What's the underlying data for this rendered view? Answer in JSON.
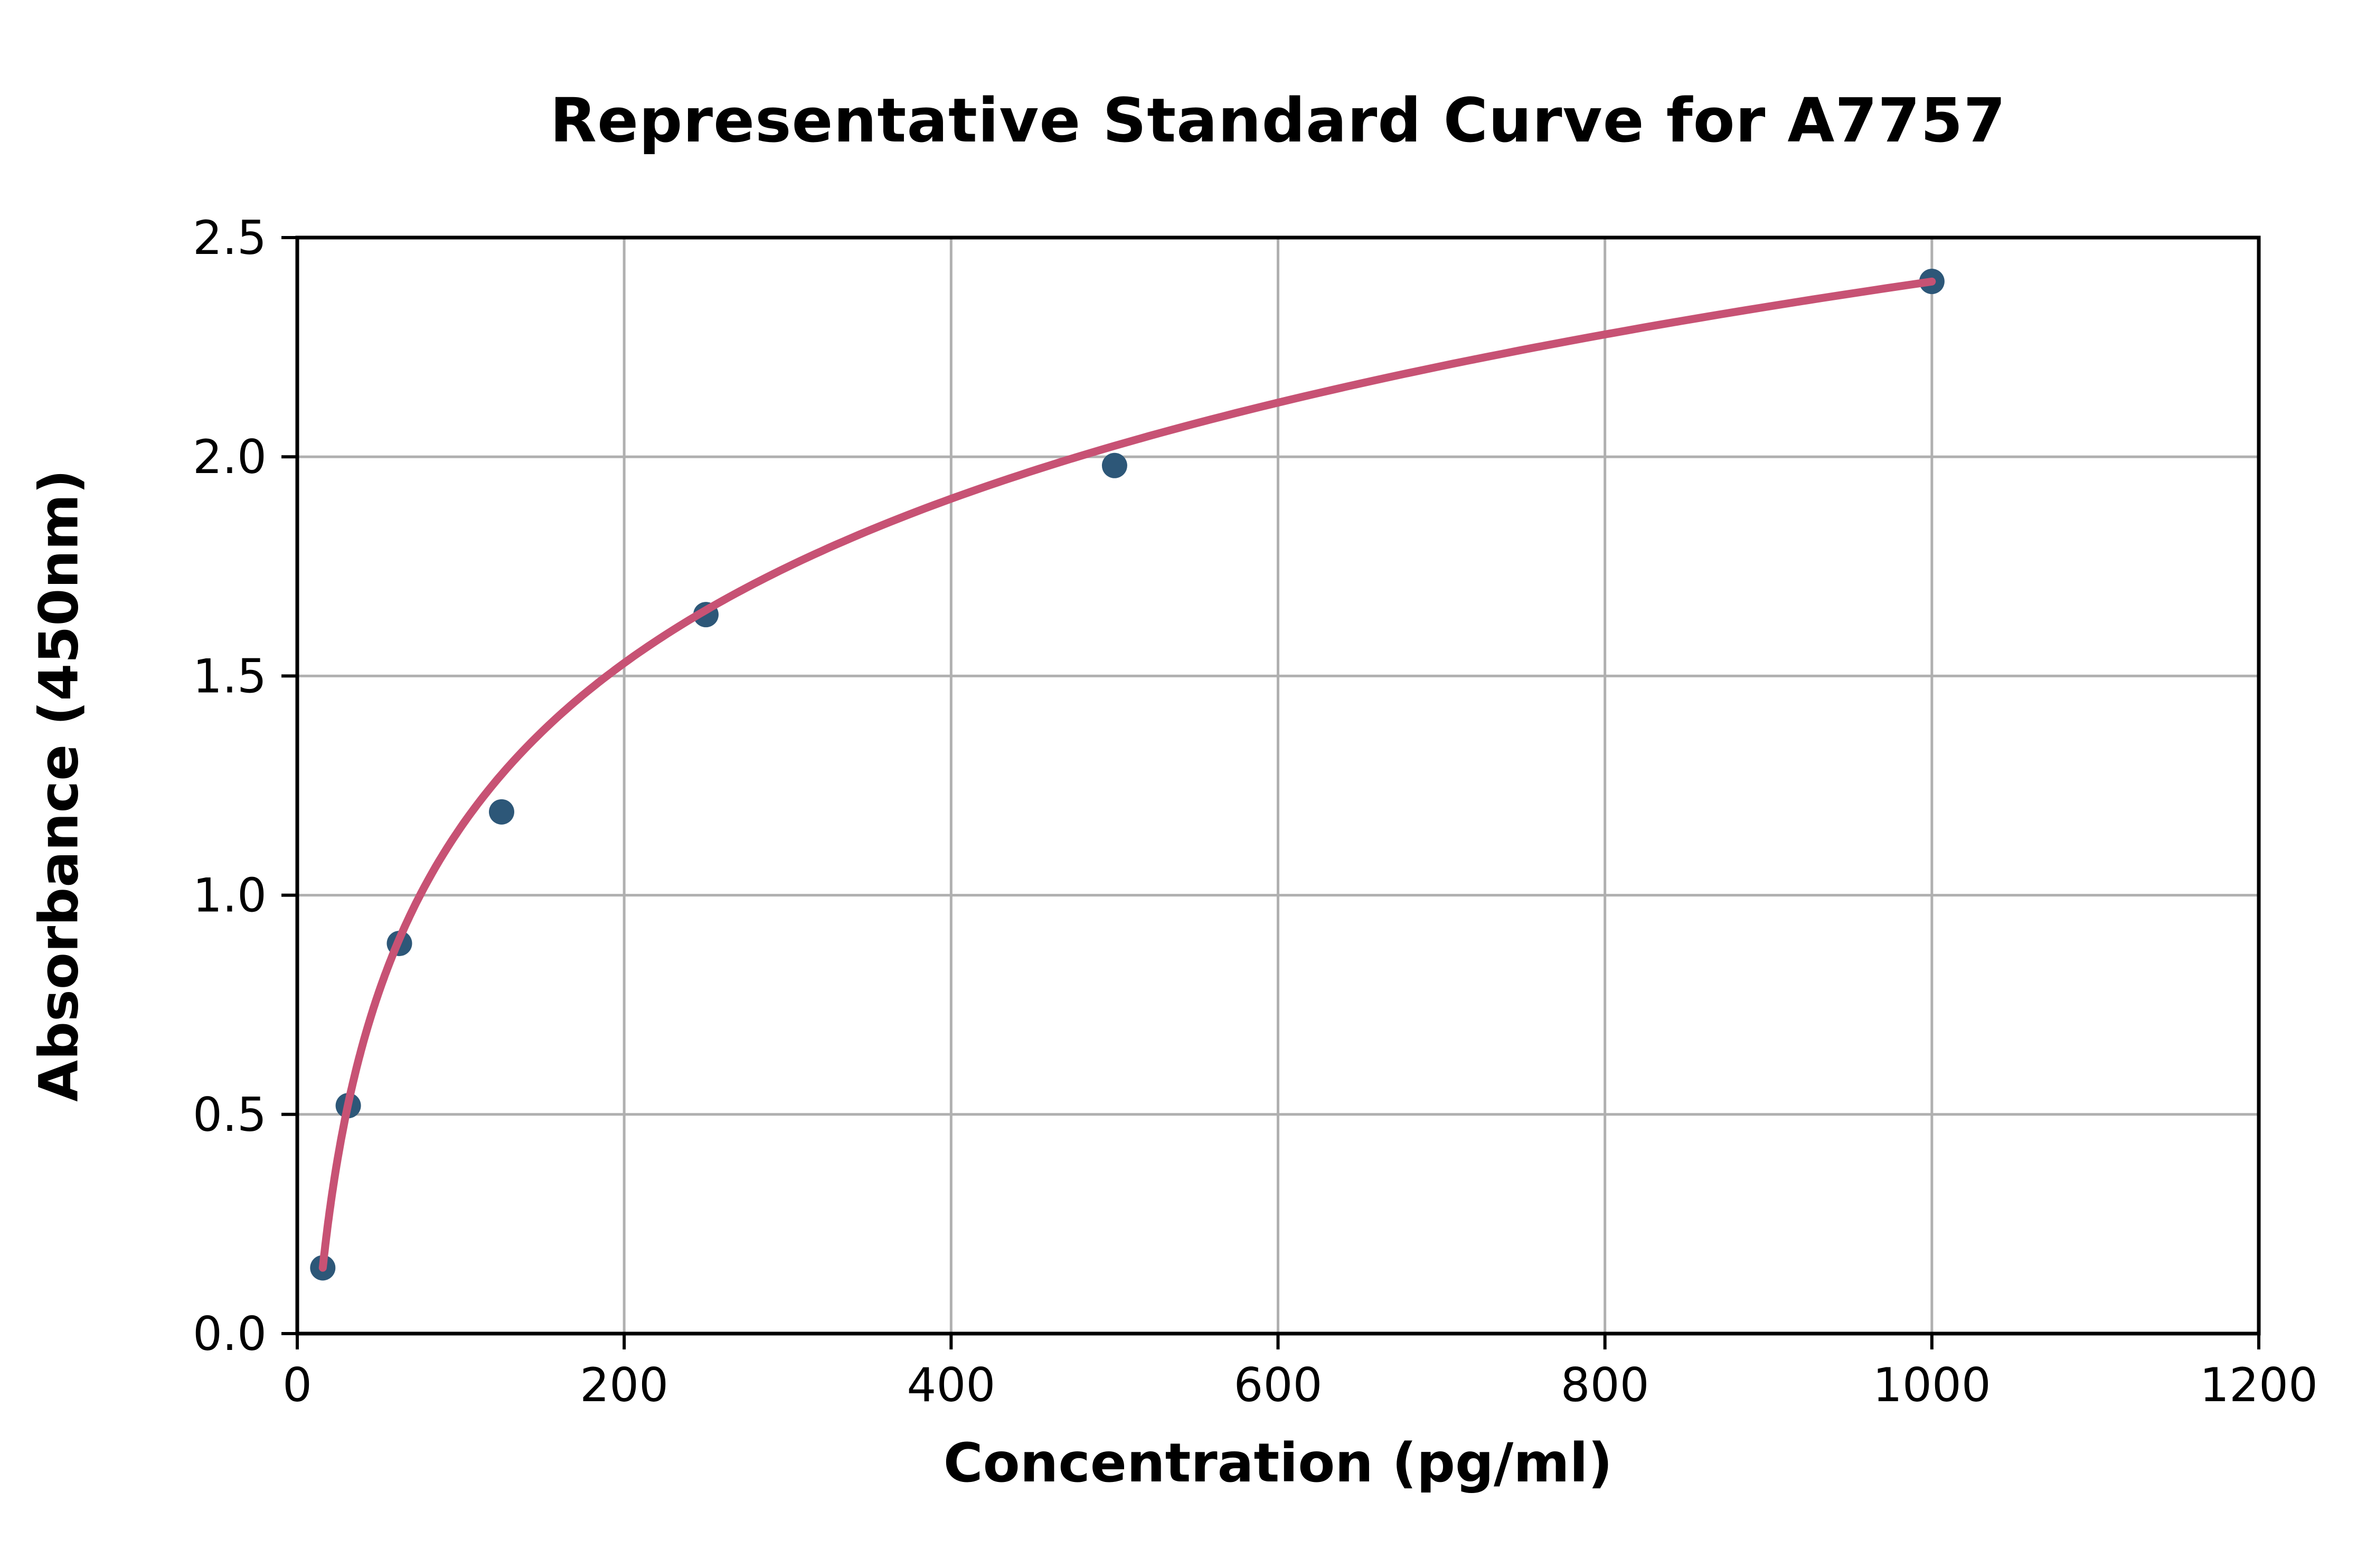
{
  "figure": {
    "background_color": "#ffffff"
  },
  "chart_data": {
    "type": "scatter",
    "title": "Representative Standard Curve for A7757",
    "xlabel": "Concentration (pg/ml)",
    "ylabel": "Absorbance (450nm)",
    "xlim": [
      0,
      1200
    ],
    "ylim": [
      0,
      2.5
    ],
    "x_ticks": [
      0,
      200,
      400,
      600,
      800,
      1000,
      1200
    ],
    "x_tick_labels": [
      "0",
      "200",
      "400",
      "600",
      "800",
      "1000",
      "1200"
    ],
    "y_ticks": [
      0,
      0.5,
      1.0,
      1.5,
      2.0,
      2.5
    ],
    "y_tick_labels": [
      "0.0",
      "0.5",
      "1.0",
      "1.5",
      "2.0",
      "2.5"
    ],
    "grid": true,
    "legend": "none",
    "points": [
      {
        "x": 15.6,
        "y": 0.15
      },
      {
        "x": 31.2,
        "y": 0.52
      },
      {
        "x": 62.5,
        "y": 0.89
      },
      {
        "x": 125,
        "y": 1.19
      },
      {
        "x": 250,
        "y": 1.64
      },
      {
        "x": 500,
        "y": 1.98
      },
      {
        "x": 1000,
        "y": 2.4
      }
    ],
    "fit_curve": {
      "type": "logarithmic",
      "equation": "y = a*ln(x) + b",
      "a": 0.5407,
      "b": -1.3353,
      "x_start": 15.6,
      "x_end": 1000
    },
    "colors": {
      "marker": "#2d5778",
      "curve": "#c75274",
      "grid": "#b0b0b0",
      "spine": "#000000",
      "text": "#000000",
      "background": "#ffffff"
    }
  }
}
